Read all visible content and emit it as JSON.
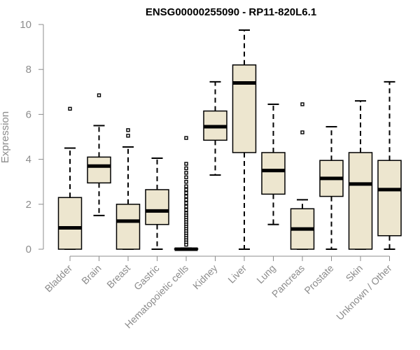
{
  "chart_data": {
    "type": "boxplot",
    "title": "ENSG00000255090 - RP11-820L6.1",
    "xlabel": "",
    "ylabel": "Expression",
    "ylim": [
      0,
      10
    ],
    "yticks": [
      0,
      2,
      4,
      6,
      8,
      10
    ],
    "grid": false,
    "box_fill": "#ede6cf",
    "box_stroke": "#000000",
    "categories": [
      "Bladder",
      "Brain",
      "Breast",
      "Gastric",
      "Hematopoietic cells",
      "Kidney",
      "Liver",
      "Lung",
      "Pancreas",
      "Prostate",
      "Skin",
      "Unknown / Other"
    ],
    "boxes": [
      {
        "min": 0,
        "q1": 0,
        "median": 0.95,
        "q3": 2.3,
        "max": 4.5,
        "outliers": [
          6.25
        ]
      },
      {
        "min": 1.5,
        "q1": 2.95,
        "median": 3.7,
        "q3": 4.1,
        "max": 5.5,
        "outliers": [
          6.85
        ]
      },
      {
        "min": 0,
        "q1": 0,
        "median": 1.25,
        "q3": 2.0,
        "max": 4.55,
        "outliers": [
          5.05,
          5.3
        ]
      },
      {
        "min": 0,
        "q1": 1.1,
        "median": 1.7,
        "q3": 2.65,
        "max": 4.05,
        "outliers": []
      },
      {
        "min": 0,
        "q1": 0,
        "median": 0,
        "q3": 0.02,
        "max": 0.05,
        "outliers": [
          4.95,
          3.8,
          3.6,
          3.4,
          3.2,
          3.0,
          2.8,
          2.65,
          2.5,
          2.35,
          2.2,
          2.05,
          1.9,
          1.75,
          1.6,
          1.5,
          1.4,
          1.3,
          1.2,
          1.1,
          1.0,
          0.9,
          0.8,
          0.7,
          0.6,
          0.5,
          0.4,
          0.3,
          0.2
        ]
      },
      {
        "min": 3.3,
        "q1": 4.85,
        "median": 5.45,
        "q3": 6.15,
        "max": 7.45,
        "outliers": []
      },
      {
        "min": 0,
        "q1": 4.3,
        "median": 7.4,
        "q3": 8.2,
        "max": 9.75,
        "outliers": []
      },
      {
        "min": 1.1,
        "q1": 2.45,
        "median": 3.5,
        "q3": 4.3,
        "max": 6.45,
        "outliers": []
      },
      {
        "min": 0,
        "q1": 0,
        "median": 0.9,
        "q3": 1.8,
        "max": 2.2,
        "outliers": [
          5.2,
          6.45
        ]
      },
      {
        "min": 0,
        "q1": 2.35,
        "median": 3.15,
        "q3": 3.95,
        "max": 5.45,
        "outliers": []
      },
      {
        "min": 0,
        "q1": 0,
        "median": 2.9,
        "q3": 4.3,
        "max": 6.6,
        "outliers": []
      },
      {
        "min": 0,
        "q1": 0.6,
        "median": 2.65,
        "q3": 3.95,
        "max": 7.45,
        "outliers": []
      }
    ]
  }
}
